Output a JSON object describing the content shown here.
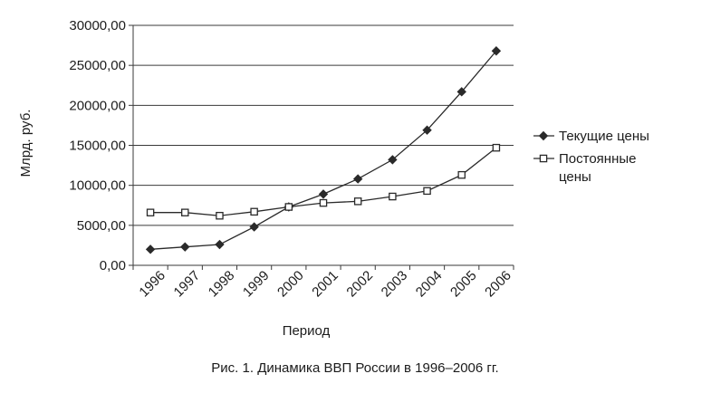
{
  "chart_data": {
    "type": "line",
    "xlabel": "Период",
    "ylabel": "Млрд. руб.",
    "caption": "Рис. 1. Динамика ВВП России в 1996–2006 гг.",
    "categories": [
      "1996",
      "1997",
      "1998",
      "1999",
      "2000",
      "2001",
      "2002",
      "2003",
      "2004",
      "2005",
      "2006"
    ],
    "y_ticks": [
      "0,00",
      "5000,00",
      "10000,00",
      "15000,00",
      "20000,00",
      "25000,00",
      "30000,00"
    ],
    "ylim": [
      0,
      30000
    ],
    "grid": true,
    "legend_position": "right",
    "series": [
      {
        "name": "Текущие цены",
        "legend_lines": [
          "Текущие цены"
        ],
        "marker": "filled-diamond",
        "color": "#2a2a2a",
        "values": [
          2000,
          2300,
          2600,
          4800,
          7300,
          8900,
          10800,
          13200,
          16900,
          21700,
          26800
        ]
      },
      {
        "name": "Постоянные цены",
        "legend_lines": [
          "Постоянные",
          "цены"
        ],
        "marker": "open-square",
        "color": "#2a2a2a",
        "values": [
          6600,
          6600,
          6200,
          6700,
          7300,
          7800,
          8000,
          8600,
          9300,
          11300,
          14700
        ]
      }
    ]
  }
}
